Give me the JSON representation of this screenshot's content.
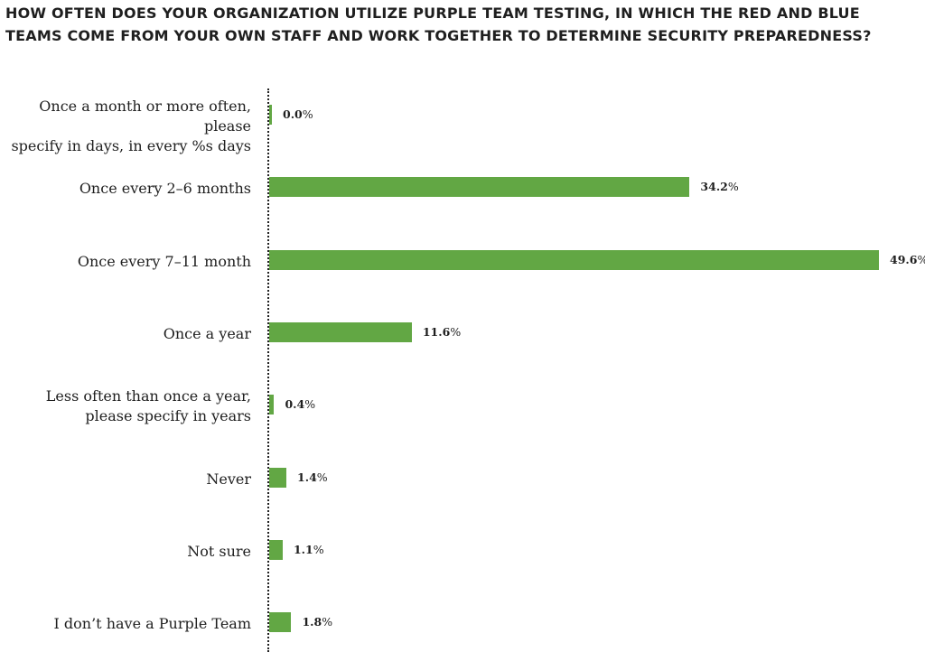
{
  "chart_data": {
    "type": "bar",
    "orientation": "horizontal",
    "title": "HOW OFTEN DOES YOUR ORGANIZATION UTILIZE PURPLE TEAM TESTING, IN WHICH THE RED AND BLUE TEAMS COME FROM YOUR OWN STAFF AND WORK TOGETHER TO DETERMINE SECURITY PREPAREDNESS?",
    "categories": [
      "Once a month or more often, please\nspecify in  days, in every %s days",
      "Once every 2–6 months",
      "Once every 7–11 month",
      "Once a year",
      "Less often than once a year,\nplease specify in years",
      "Never",
      "Not sure",
      "I don’t have a Purple Team"
    ],
    "values": [
      0.0,
      34.2,
      49.6,
      11.6,
      0.4,
      1.4,
      1.1,
      1.8
    ],
    "value_labels": [
      "0.0",
      "34.2",
      "49.6",
      "11.6",
      "0.4",
      "1.4",
      "1.1",
      "1.8"
    ],
    "value_suffix": "%",
    "xlim": [
      0,
      49.6
    ],
    "bar_color": "#62a744",
    "grid": false
  }
}
